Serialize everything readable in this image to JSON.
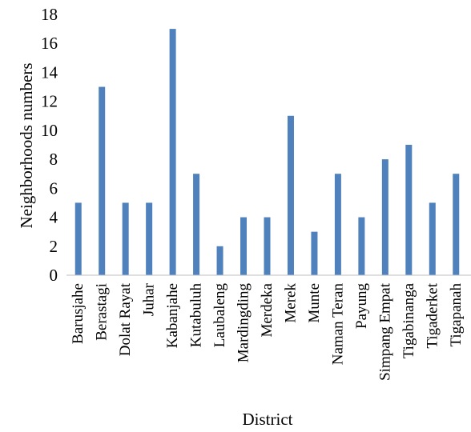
{
  "chart_data": {
    "type": "bar",
    "title": "",
    "xlabel": "District",
    "ylabel": "Neighborhoods numbers",
    "ylim": [
      0,
      18
    ],
    "ytick_step": 2,
    "grid": false,
    "legend": "none",
    "bar_color": "#4f81bd",
    "categories": [
      "Barusjahe",
      "Berastagi",
      "Dolat Rayat",
      "Juhar",
      "Kabanjahe",
      "Kutabuluh",
      "Laubaleng",
      "Mardingding",
      "Merdeka",
      "Merek",
      "Munte",
      "Naman Teran",
      "Payung",
      "Simpang Empat",
      "Tigabinanga",
      "Tigaderket",
      "Tigapanah"
    ],
    "values": [
      5,
      13,
      5,
      5,
      17,
      7,
      2,
      4,
      4,
      11,
      3,
      7,
      4,
      8,
      9,
      5,
      7
    ]
  }
}
